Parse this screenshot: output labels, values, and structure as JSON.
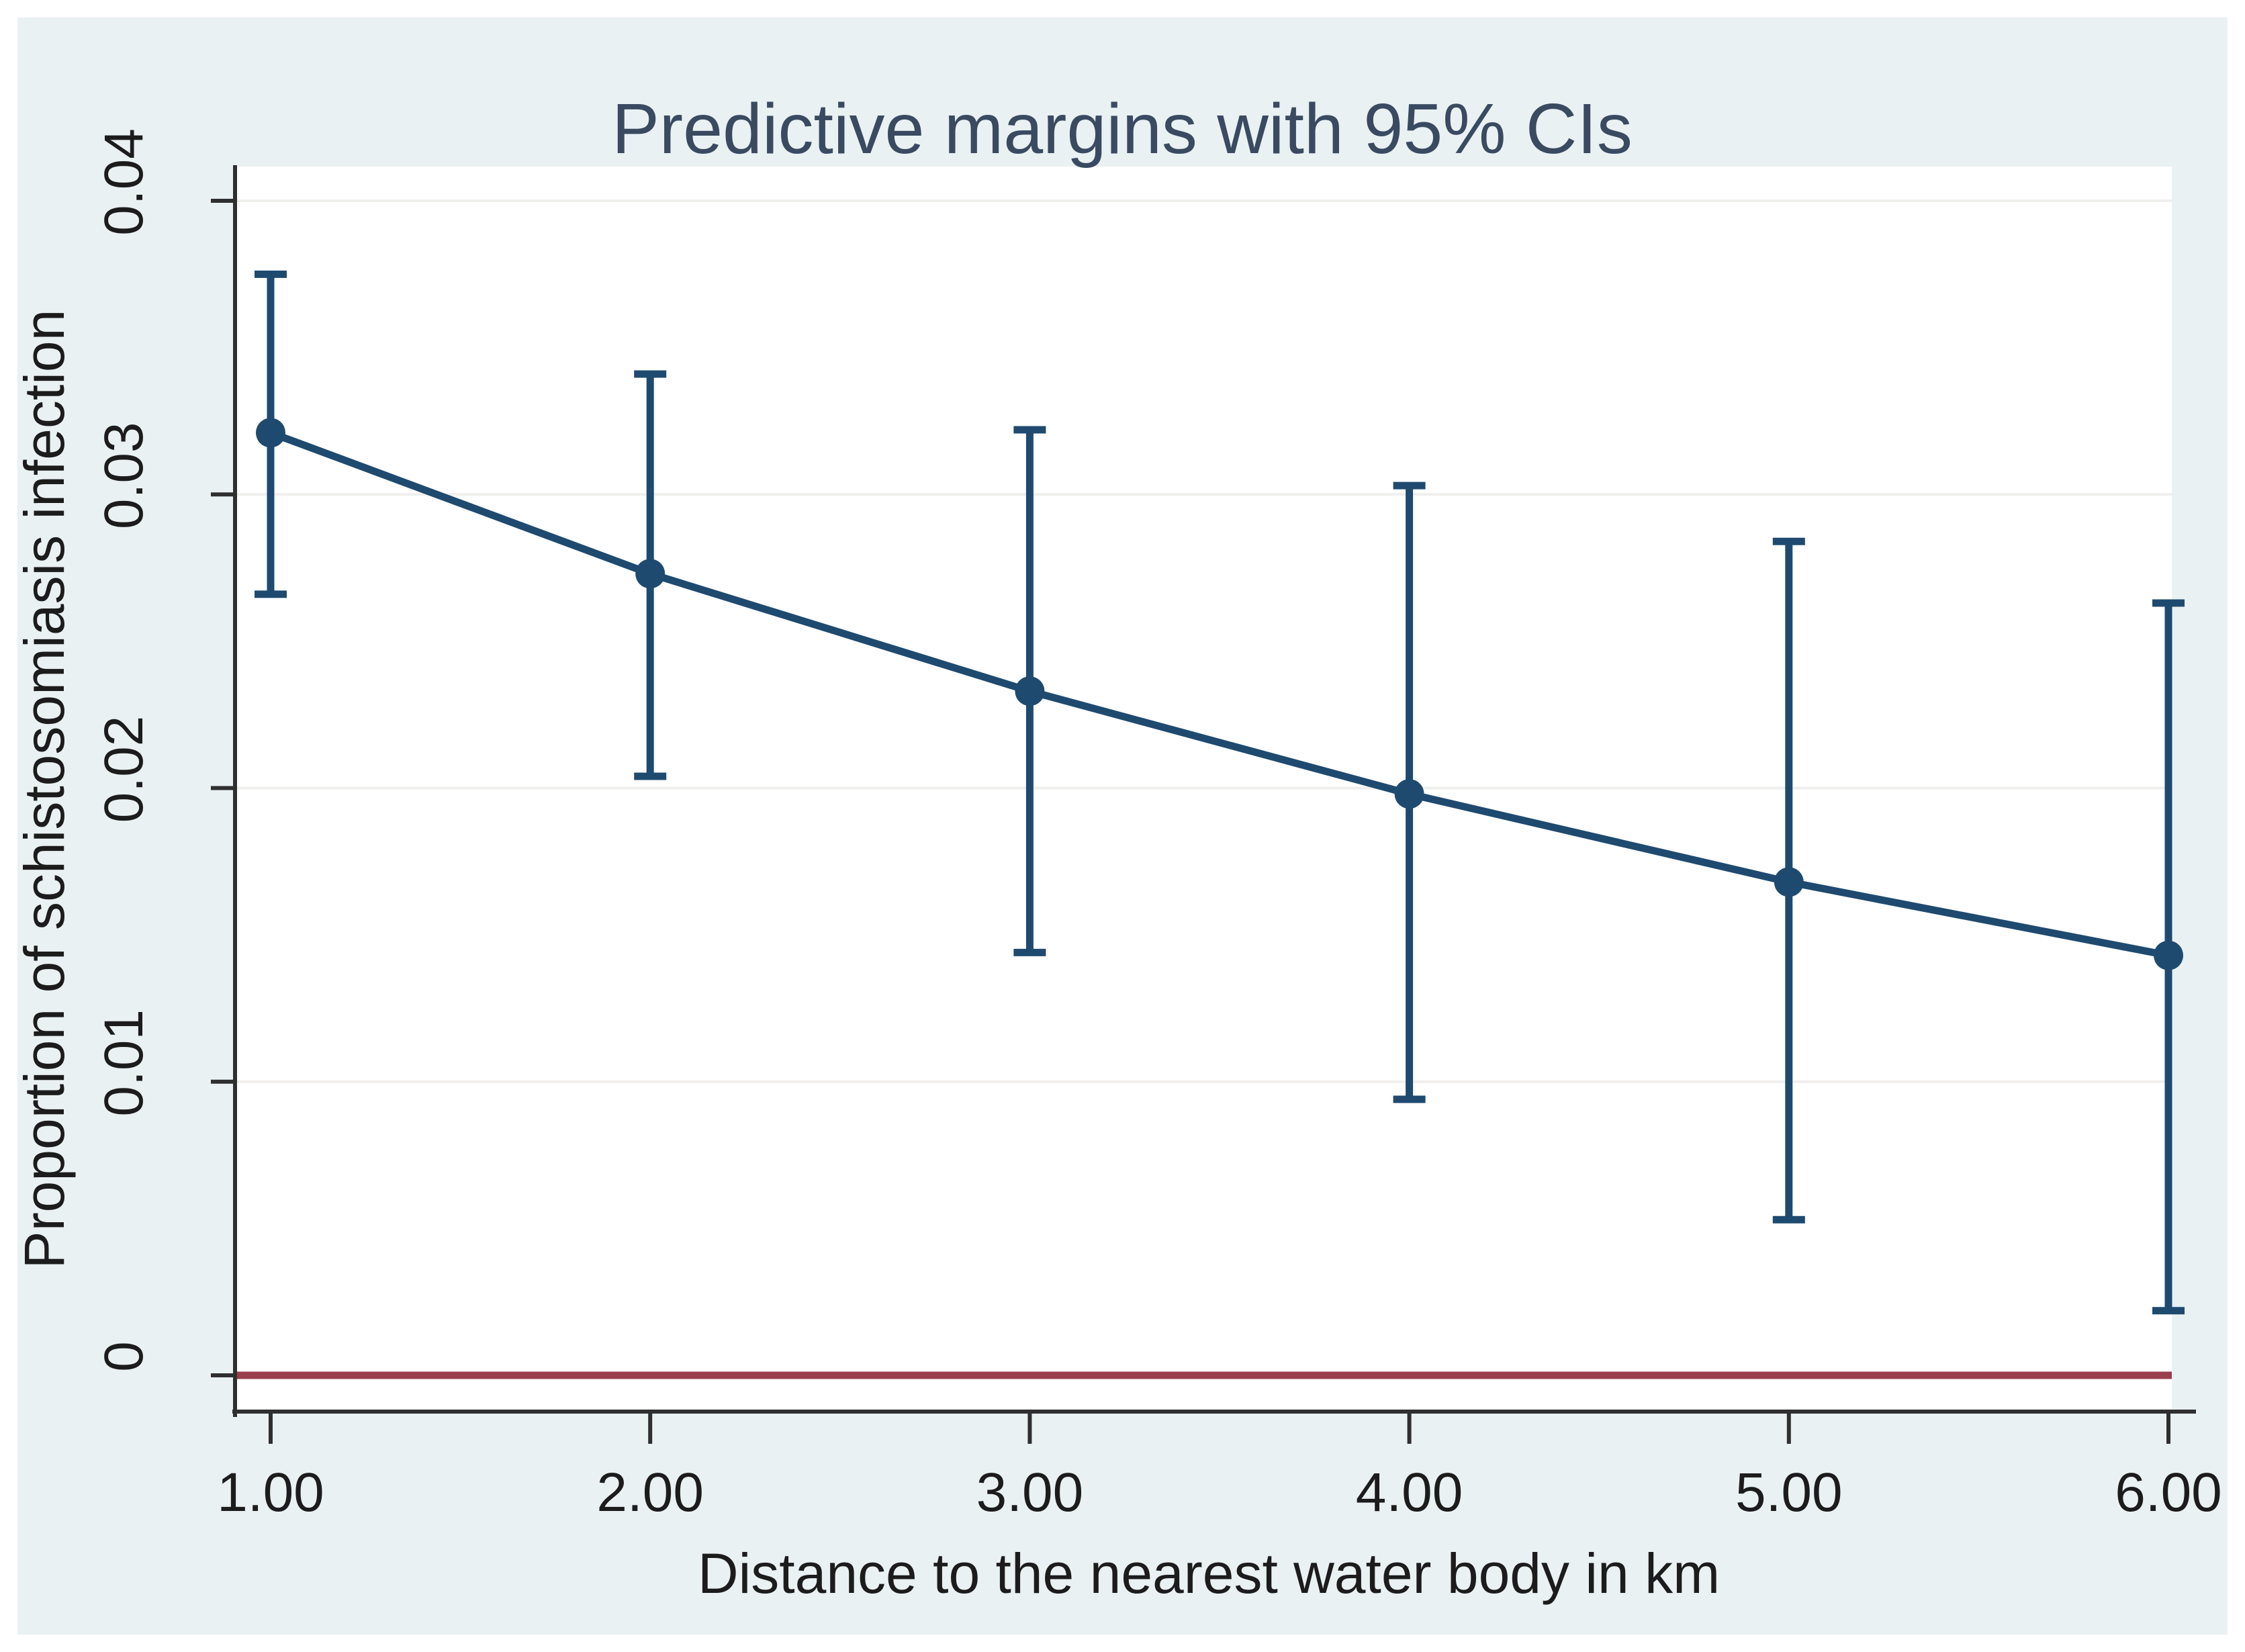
{
  "figure": {
    "title": "Predictive margins with 95% CIs",
    "colors": {
      "figure_background": "#eaf1f3",
      "plot_background": "#ffffff",
      "series": "#1f4a6f",
      "zero_line": "#9a3e4d",
      "gridline": "#f0efed",
      "axis_line": "#2f2f2f",
      "title_text": "#394a61",
      "tick_text": "#1c1c1c"
    }
  },
  "chart_data": {
    "type": "line",
    "title": "Predictive margins with 95% CIs",
    "xlabel": "Distance to the nearest water body in km",
    "ylabel": "Proportion of schistosomiasis infection",
    "x": [
      1,
      2,
      3,
      4,
      5,
      6
    ],
    "x_tick_labels": [
      "1.00",
      "2.00",
      "3.00",
      "4.00",
      "5.00",
      "6.00"
    ],
    "y_ticks": [
      0,
      0.01,
      0.02,
      0.03,
      0.04
    ],
    "y_tick_labels": [
      "0",
      "0.01",
      "0.02",
      "0.03",
      "0.04"
    ],
    "xlim": [
      0.9,
      6.02
    ],
    "ylim": [
      -0.0012,
      0.0411
    ],
    "grid": true,
    "legend_position": "none",
    "series": [
      {
        "name": "Predictive margin",
        "values": [
          0.0321,
          0.0273,
          0.0233,
          0.0198,
          0.0168,
          0.0143
        ]
      }
    ],
    "ci_lower": [
      0.0266,
      0.0204,
      0.0144,
      0.0094,
      0.0053,
      0.0022
    ],
    "ci_upper": [
      0.0375,
      0.0341,
      0.0322,
      0.0303,
      0.0284,
      0.0263
    ],
    "zero_reference_line": 0
  }
}
